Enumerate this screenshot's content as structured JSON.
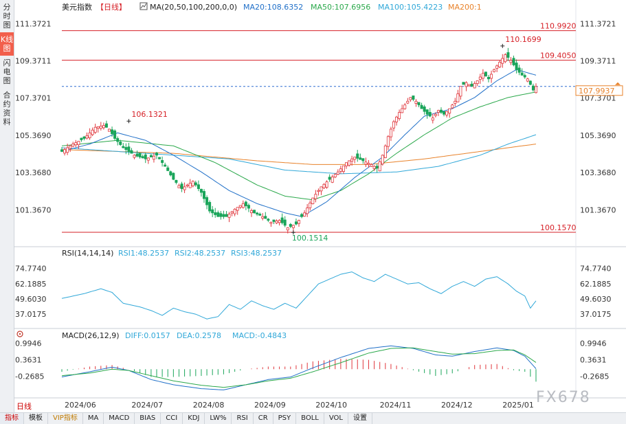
{
  "side_tabs": [
    "分时图",
    "K线图",
    "闪电图",
    "合约资料"
  ],
  "header": {
    "title": "美元指数",
    "period": "【日线】",
    "ma_label": "MA(20,50,100,200,0,0)",
    "ma20": "MA20:108.6352",
    "ma50": "MA50:107.6956",
    "ma100": "MA100:105.4223",
    "ma200": "MA200:1"
  },
  "price_axis_right": [
    "111.3721",
    "109.3711",
    "107.3701",
    "105.3690",
    "103.3680",
    "101.3670"
  ],
  "price_axis_left": [
    "111.3721",
    "109.3711",
    "107.3701",
    "105.3690",
    "103.3680",
    "101.3670"
  ],
  "levels": [
    {
      "label": "110.9920",
      "value": 110.992
    },
    {
      "label": "109.4050",
      "value": 109.405
    },
    {
      "label": "100.1570",
      "value": 100.157
    }
  ],
  "current_price": {
    "label": "107.9937",
    "value": 107.9937
  },
  "annotations": [
    {
      "label": "106.1321",
      "value": 106.1321
    },
    {
      "label": "110.1699",
      "value": 110.1699
    },
    {
      "label": "100.1514",
      "value": 100.1514
    }
  ],
  "rsi": {
    "label": "RSI(14,14,14)",
    "rsi1": "RSI1:48.2537",
    "rsi2": "RSI2:48.2537",
    "rsi3": "RSI3:48.2537",
    "axis": [
      "74.7740",
      "62.1885",
      "49.6030",
      "37.0175"
    ]
  },
  "macd": {
    "label": "MACD(26,12,9)",
    "diff": "DIFF:0.0157",
    "dea": "DEA:0.2578",
    "macd": "MACD:-0.4843",
    "axis": [
      "0.9946",
      "0.3631",
      "-0.2685"
    ]
  },
  "date_labels": [
    "2024/06",
    "2024/07",
    "2024/08",
    "2024/09",
    "2024/10",
    "2024/11",
    "2024/12",
    "2025/01"
  ],
  "period_tab": "日线",
  "bottom_tabs": [
    "指标",
    "模板",
    "VIP指标",
    "MA",
    "MACD",
    "BIAS",
    "CCI",
    "KDJ",
    "LW%",
    "RSI",
    "CR",
    "PSY",
    "BOLL",
    "VOL",
    "设置"
  ],
  "watermark": "FX678",
  "colors": {
    "up": "#e0353b",
    "down": "#1aa55a",
    "ma20": "#1f6fc8",
    "ma50": "#2aa84a",
    "ma100": "#2fa7d8",
    "ma200": "#e8822a",
    "level": "#d61f26"
  },
  "chart_data": {
    "type": "candlestick",
    "title": "美元指数 日线",
    "ylim": [
      99.9,
      111.9
    ],
    "rsi_ylim": [
      28,
      82
    ],
    "macd_ylim": [
      -1.0,
      1.25
    ],
    "x_categories": [
      "2024/06",
      "2024/07",
      "2024/08",
      "2024/09",
      "2024/10",
      "2024/11",
      "2024/12",
      "2025/01"
    ],
    "close_anchors": [
      [
        0,
        104.5
      ],
      [
        4,
        104.9
      ],
      [
        8,
        105.2
      ],
      [
        12,
        105.8
      ],
      [
        15,
        105.9
      ],
      [
        17,
        105.7
      ],
      [
        19,
        105.2
      ],
      [
        22,
        104.7
      ],
      [
        26,
        104.3
      ],
      [
        30,
        104.1
      ],
      [
        34,
        104.3
      ],
      [
        37,
        103.7
      ],
      [
        40,
        103.0
      ],
      [
        43,
        102.5
      ],
      [
        47,
        102.9
      ],
      [
        50,
        102.3
      ],
      [
        53,
        101.3
      ],
      [
        56,
        101.0
      ],
      [
        59,
        101.0
      ],
      [
        62,
        101.4
      ],
      [
        65,
        101.7
      ],
      [
        69,
        101.2
      ],
      [
        72,
        101.0
      ],
      [
        75,
        100.7
      ],
      [
        78,
        100.8
      ],
      [
        81,
        100.4
      ],
      [
        84,
        100.6
      ],
      [
        87,
        101.2
      ],
      [
        90,
        102.0
      ],
      [
        93,
        102.6
      ],
      [
        96,
        103.0
      ],
      [
        99,
        103.4
      ],
      [
        102,
        103.9
      ],
      [
        105,
        104.2
      ],
      [
        108,
        104.0
      ],
      [
        111,
        103.8
      ],
      [
        113,
        103.6
      ],
      [
        115,
        104.3
      ],
      [
        117,
        105.3
      ],
      [
        119,
        106.1
      ],
      [
        121,
        106.6
      ],
      [
        123,
        107.0
      ],
      [
        125,
        107.4
      ],
      [
        127,
        107.2
      ],
      [
        129,
        106.8
      ],
      [
        131,
        106.5
      ],
      [
        133,
        106.3
      ],
      [
        135,
        106.7
      ],
      [
        137,
        106.5
      ],
      [
        139,
        106.8
      ],
      [
        141,
        107.2
      ],
      [
        143,
        108.0
      ],
      [
        145,
        108.2
      ],
      [
        147,
        108.0
      ],
      [
        149,
        108.3
      ],
      [
        151,
        108.7
      ],
      [
        153,
        108.4
      ],
      [
        155,
        108.9
      ],
      [
        157,
        109.3
      ],
      [
        159,
        109.7
      ],
      [
        161,
        109.4
      ],
      [
        163,
        108.9
      ],
      [
        165,
        108.6
      ],
      [
        167,
        108.4
      ],
      [
        169,
        107.8
      ],
      [
        170,
        107.99
      ]
    ],
    "ma20_pts": [
      [
        0,
        104.5
      ],
      [
        10,
        104.9
      ],
      [
        20,
        105.5
      ],
      [
        30,
        105.1
      ],
      [
        40,
        104.3
      ],
      [
        50,
        103.4
      ],
      [
        60,
        102.4
      ],
      [
        70,
        101.7
      ],
      [
        80,
        101.2
      ],
      [
        86,
        101.0
      ],
      [
        95,
        101.8
      ],
      [
        105,
        103.1
      ],
      [
        115,
        104.2
      ],
      [
        123,
        105.4
      ],
      [
        130,
        106.4
      ],
      [
        140,
        106.8
      ],
      [
        148,
        107.4
      ],
      [
        156,
        108.3
      ],
      [
        163,
        108.9
      ],
      [
        170,
        108.6
      ]
    ],
    "ma50_pts": [
      [
        0,
        104.8
      ],
      [
        20,
        105.1
      ],
      [
        40,
        104.8
      ],
      [
        55,
        103.9
      ],
      [
        70,
        102.7
      ],
      [
        80,
        102.1
      ],
      [
        90,
        101.9
      ],
      [
        100,
        102.4
      ],
      [
        110,
        103.3
      ],
      [
        120,
        104.4
      ],
      [
        130,
        105.4
      ],
      [
        140,
        106.3
      ],
      [
        150,
        106.9
      ],
      [
        160,
        107.4
      ],
      [
        170,
        107.7
      ]
    ],
    "ma100_pts": [
      [
        0,
        104.7
      ],
      [
        30,
        104.4
      ],
      [
        60,
        104.1
      ],
      [
        80,
        103.5
      ],
      [
        100,
        103.3
      ],
      [
        120,
        103.4
      ],
      [
        135,
        103.7
      ],
      [
        150,
        104.3
      ],
      [
        160,
        104.9
      ],
      [
        170,
        105.4
      ]
    ],
    "ma200_pts": [
      [
        0,
        104.6
      ],
      [
        40,
        104.4
      ],
      [
        70,
        104.0
      ],
      [
        90,
        103.8
      ],
      [
        110,
        103.8
      ],
      [
        130,
        104.1
      ],
      [
        150,
        104.5
      ],
      [
        170,
        104.9
      ]
    ],
    "rsi_anchors": [
      [
        0,
        50
      ],
      [
        8,
        54
      ],
      [
        14,
        58
      ],
      [
        18,
        55
      ],
      [
        22,
        46
      ],
      [
        28,
        43
      ],
      [
        32,
        40
      ],
      [
        36,
        36
      ],
      [
        40,
        42
      ],
      [
        44,
        39
      ],
      [
        48,
        37
      ],
      [
        52,
        33
      ],
      [
        56,
        35
      ],
      [
        60,
        45
      ],
      [
        64,
        41
      ],
      [
        68,
        48
      ],
      [
        72,
        44
      ],
      [
        76,
        41
      ],
      [
        80,
        46
      ],
      [
        84,
        42
      ],
      [
        88,
        52
      ],
      [
        92,
        62
      ],
      [
        96,
        66
      ],
      [
        100,
        70
      ],
      [
        104,
        72
      ],
      [
        108,
        67
      ],
      [
        112,
        64
      ],
      [
        116,
        70
      ],
      [
        120,
        66
      ],
      [
        124,
        62
      ],
      [
        128,
        63
      ],
      [
        132,
        58
      ],
      [
        136,
        54
      ],
      [
        140,
        60
      ],
      [
        144,
        64
      ],
      [
        148,
        60
      ],
      [
        152,
        66
      ],
      [
        156,
        68
      ],
      [
        160,
        62
      ],
      [
        163,
        56
      ],
      [
        166,
        52
      ],
      [
        168,
        42
      ],
      [
        170,
        48
      ]
    ],
    "diff_anchors": [
      [
        0,
        -0.3
      ],
      [
        10,
        -0.1
      ],
      [
        18,
        0.08
      ],
      [
        24,
        -0.05
      ],
      [
        32,
        -0.4
      ],
      [
        40,
        -0.6
      ],
      [
        50,
        -0.75
      ],
      [
        58,
        -0.8
      ],
      [
        66,
        -0.6
      ],
      [
        74,
        -0.4
      ],
      [
        82,
        -0.3
      ],
      [
        90,
        0.05
      ],
      [
        100,
        0.45
      ],
      [
        110,
        0.8
      ],
      [
        118,
        0.9
      ],
      [
        126,
        0.8
      ],
      [
        134,
        0.55
      ],
      [
        140,
        0.5
      ],
      [
        148,
        0.68
      ],
      [
        156,
        0.82
      ],
      [
        162,
        0.72
      ],
      [
        166,
        0.5
      ],
      [
        170,
        0.02
      ]
    ],
    "dea_anchors": [
      [
        0,
        -0.25
      ],
      [
        10,
        -0.15
      ],
      [
        18,
        0.0
      ],
      [
        24,
        -0.05
      ],
      [
        32,
        -0.25
      ],
      [
        40,
        -0.45
      ],
      [
        50,
        -0.62
      ],
      [
        58,
        -0.7
      ],
      [
        66,
        -0.6
      ],
      [
        74,
        -0.45
      ],
      [
        82,
        -0.35
      ],
      [
        90,
        -0.1
      ],
      [
        100,
        0.25
      ],
      [
        110,
        0.62
      ],
      [
        118,
        0.8
      ],
      [
        126,
        0.82
      ],
      [
        134,
        0.68
      ],
      [
        140,
        0.58
      ],
      [
        148,
        0.6
      ],
      [
        156,
        0.72
      ],
      [
        162,
        0.74
      ],
      [
        166,
        0.55
      ],
      [
        170,
        0.26
      ]
    ]
  }
}
